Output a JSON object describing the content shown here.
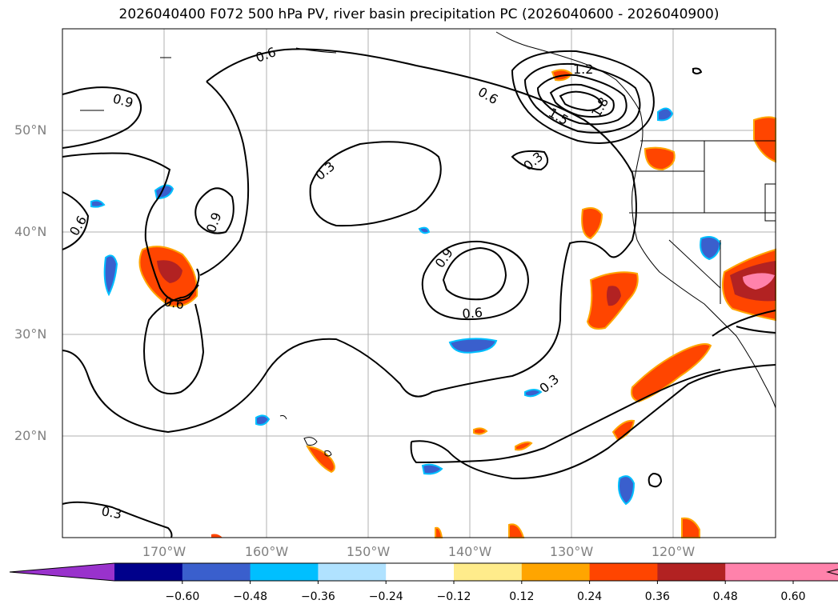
{
  "title": "2026040400 F072 500 hPa PV, river basin precipitation PC (2026040600 - 2026040900)",
  "lat_labels": [
    "50°N",
    "40°N",
    "30°N",
    "20°N"
  ],
  "lon_labels": [
    "170°W",
    "160°W",
    "150°W",
    "140°W",
    "130°W",
    "120°W"
  ],
  "contour_labels": [
    "0.6",
    "0.9",
    "0.6",
    "0.9",
    "0.3",
    "0.3",
    "0.6",
    "1.2",
    "1.8",
    "1.5",
    "0.9",
    "0.6",
    "0.6",
    "0.3",
    "0.3"
  ],
  "colorbar": {
    "ticks": [
      "−0.60",
      "−0.48",
      "−0.36",
      "−0.24",
      "−0.12",
      "0.12",
      "0.24",
      "0.36",
      "0.48",
      "0.60"
    ],
    "colors": [
      "#9932cc",
      "#00008b",
      "#3a5fcd",
      "#00bfff",
      "#b0e2ff",
      "#ffffff",
      "#ffec8b",
      "#ffa500",
      "#ff4500",
      "#b22222",
      "#ff82ab",
      "#ff82ab"
    ]
  }
}
